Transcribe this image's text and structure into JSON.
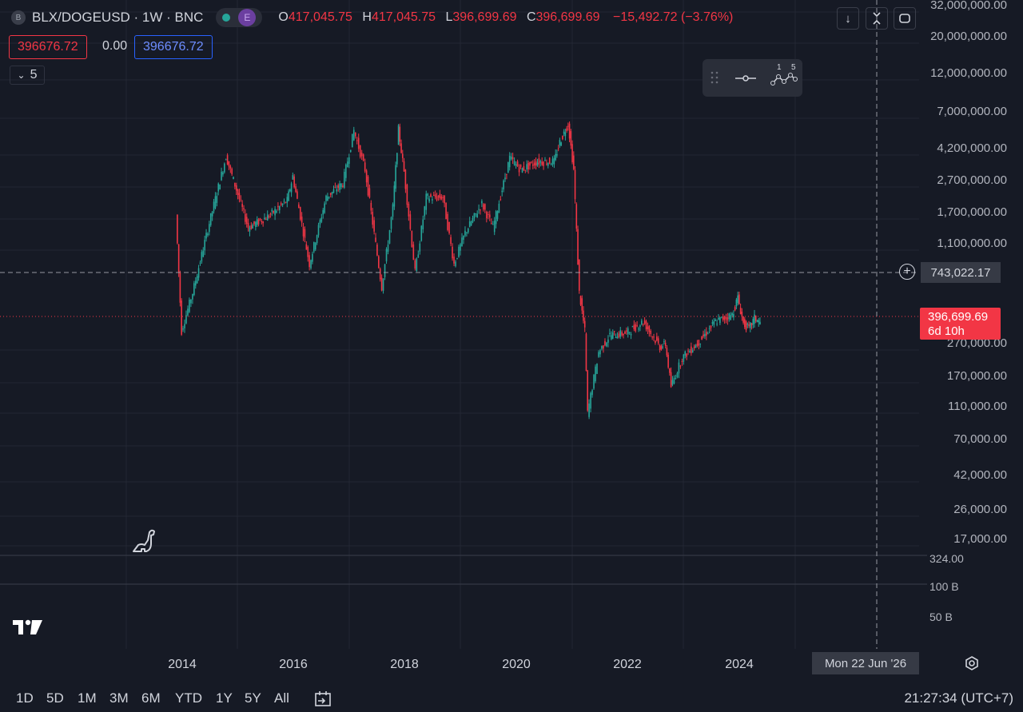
{
  "header": {
    "symbol_icon": "B",
    "title": "BLX/DOGEUSD · 1W · BNC",
    "status_icon": "green-dot-icon",
    "exchange_badge": "E",
    "o_label": "O",
    "o_value": "417,045.75",
    "h_label": "H",
    "h_value": "417,045.75",
    "l_label": "L",
    "l_value": "396,699.69",
    "c_label": "C",
    "c_value": "396,699.69",
    "change": "−15,492.72 (−3.76%)"
  },
  "order": {
    "sell": "396676.72",
    "spread": "0.00",
    "buy": "396676.72"
  },
  "indicators": {
    "collapse_count": "5"
  },
  "y_axis": [
    "32,000,000.00",
    "20,000,000.00",
    "12,000,000.00",
    "7,000,000.00",
    "4,200,000.00",
    "2,700,000.00",
    "1,700,000.00",
    "1,100,000.00",
    "270,000.00",
    "170,000.00",
    "110,000.00",
    "70,000.00",
    "42,000.00",
    "26,000.00",
    "17,000.00"
  ],
  "volume_axis": [
    "324.00",
    "100 B",
    "50 B"
  ],
  "x_axis": [
    "2014",
    "2016",
    "2018",
    "2020",
    "2022",
    "2024"
  ],
  "crosshair": {
    "price": "743,022.17",
    "date": "Mon 22 Jun '26"
  },
  "last_price": {
    "value": "396,699.69",
    "countdown": "6d 10h"
  },
  "timeframes": [
    "1D",
    "5D",
    "1M",
    "3M",
    "6M",
    "YTD",
    "1Y",
    "5Y",
    "All"
  ],
  "clock": "21:27:34 (UTC+7)",
  "colors": {
    "up": "#26a69a",
    "down": "#f23645",
    "bg": "#161a25",
    "grid": "#232733",
    "accent": "#2962ff"
  },
  "chart_data": {
    "type": "candlestick",
    "title": "BLX/DOGEUSD · 1W · BNC",
    "y_scale": "log",
    "x": [
      "2013.9",
      "2014.0",
      "2014.2",
      "2014.5",
      "2014.8",
      "2015.2",
      "2015.6",
      "2015.9",
      "2016.0",
      "2016.3",
      "2016.6",
      "2016.9",
      "2017.1",
      "2017.3",
      "2017.6",
      "2017.8",
      "2017.9",
      "2018.0",
      "2018.2",
      "2018.4",
      "2018.7",
      "2018.9",
      "2019.1",
      "2019.4",
      "2019.6",
      "2019.9",
      "2020.1",
      "2020.4",
      "2020.7",
      "2020.8",
      "2020.95",
      "2021.05",
      "2021.15",
      "2021.25",
      "2021.3",
      "2021.5",
      "2021.7",
      "2022.0",
      "2022.3",
      "2022.6",
      "2022.7",
      "2022.8",
      "2023.0",
      "2023.3",
      "2023.6",
      "2023.9",
      "2024.0",
      "2024.1",
      "2024.2",
      "2024.3",
      "2024.4"
    ],
    "close": [
      1800000,
      350000,
      600000,
      1600000,
      4100000,
      1500000,
      1800000,
      2200000,
      3100000,
      900000,
      2300000,
      2800000,
      5900000,
      3400000,
      650000,
      2000000,
      6000000,
      3300000,
      800000,
      2300000,
      2300000,
      900000,
      1400000,
      2100000,
      1500000,
      4000000,
      3400000,
      3800000,
      3800000,
      5000000,
      6500000,
      3400000,
      600000,
      350000,
      110000,
      260000,
      330000,
      340000,
      400000,
      280000,
      290000,
      160000,
      240000,
      300000,
      400000,
      440000,
      560000,
      390000,
      360000,
      420000,
      396699.69
    ],
    "ylim": [
      15000,
      32000000
    ]
  }
}
